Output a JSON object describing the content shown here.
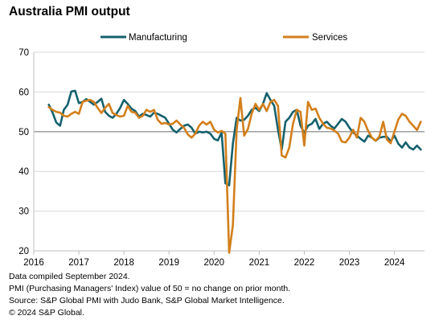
{
  "title": "Australia PMI output",
  "footnotes": [
    "Data compiled September 2024.",
    "PMI (Purchasing Managers' Index) value of 50 = no change on prior month.",
    "Source: S&P Global PMI with Judo Bank, S&P Global Market Intelligence.",
    "© 2024 S&P Global."
  ],
  "colors": {
    "manufacturing": "#15616d",
    "services": "#d37f1b",
    "gridline": "#d9d9d9",
    "reference_line": "#7f7f7f",
    "axis": "#bfbfbf"
  },
  "chart_data": {
    "type": "line",
    "title": "Australia PMI output",
    "legend_position": "top",
    "grid": true,
    "reference_line_y": 50,
    "xlim": [
      "2016-01",
      "2024-09"
    ],
    "ylim": [
      20,
      70
    ],
    "x_ticks": [
      "2016",
      "2017",
      "2018",
      "2019",
      "2020",
      "2021",
      "2022",
      "2023",
      "2024"
    ],
    "y_ticks": [
      20,
      30,
      40,
      50,
      60,
      70
    ],
    "x": [
      "2016-05",
      "2016-06",
      "2016-07",
      "2016-08",
      "2016-09",
      "2016-10",
      "2016-11",
      "2016-12",
      "2017-01",
      "2017-02",
      "2017-03",
      "2017-04",
      "2017-05",
      "2017-06",
      "2017-07",
      "2017-08",
      "2017-09",
      "2017-10",
      "2017-11",
      "2017-12",
      "2018-01",
      "2018-02",
      "2018-03",
      "2018-04",
      "2018-05",
      "2018-06",
      "2018-07",
      "2018-08",
      "2018-09",
      "2018-10",
      "2018-11",
      "2018-12",
      "2019-01",
      "2019-02",
      "2019-03",
      "2019-04",
      "2019-05",
      "2019-06",
      "2019-07",
      "2019-08",
      "2019-09",
      "2019-10",
      "2019-11",
      "2019-12",
      "2020-01",
      "2020-02",
      "2020-03",
      "2020-04",
      "2020-05",
      "2020-06",
      "2020-07",
      "2020-08",
      "2020-09",
      "2020-10",
      "2020-11",
      "2020-12",
      "2021-01",
      "2021-02",
      "2021-03",
      "2021-04",
      "2021-05",
      "2021-06",
      "2021-07",
      "2021-08",
      "2021-09",
      "2021-10",
      "2021-11",
      "2021-12",
      "2022-01",
      "2022-02",
      "2022-03",
      "2022-04",
      "2022-05",
      "2022-06",
      "2022-07",
      "2022-08",
      "2022-09",
      "2022-10",
      "2022-11",
      "2022-12",
      "2023-01",
      "2023-02",
      "2023-03",
      "2023-04",
      "2023-05",
      "2023-06",
      "2023-07",
      "2023-08",
      "2023-09",
      "2023-10",
      "2023-11",
      "2023-12",
      "2024-01",
      "2024-02",
      "2024-03",
      "2024-04",
      "2024-05",
      "2024-06",
      "2024-07",
      "2024-08"
    ],
    "series": [
      {
        "name": "Manufacturing",
        "color": "#15616d",
        "values": [
          56.8,
          54.8,
          52.3,
          51.5,
          55.5,
          56.8,
          60.1,
          60.3,
          57.2,
          57.5,
          58.2,
          57.5,
          56.8,
          57.5,
          58.3,
          55.0,
          54.0,
          53.5,
          54.5,
          56.0,
          58.0,
          57.0,
          55.8,
          55.2,
          53.8,
          54.5,
          54.2,
          53.8,
          54.8,
          54.5,
          54.0,
          53.5,
          52.0,
          50.5,
          49.8,
          50.7,
          51.5,
          51.8,
          51.0,
          49.5,
          50.0,
          49.8,
          50.0,
          49.5,
          48.2,
          47.8,
          49.8,
          37.0,
          36.5,
          47.0,
          53.5,
          52.8,
          53.0,
          54.0,
          55.5,
          56.0,
          55.2,
          57.0,
          59.7,
          58.0,
          56.5,
          50.5,
          45.5,
          52.5,
          53.5,
          55.0,
          55.5,
          51.5,
          49.7,
          51.5,
          52.0,
          53.2,
          50.7,
          52.0,
          52.5,
          51.5,
          50.8,
          52.0,
          53.2,
          52.5,
          51.0,
          49.8,
          49.0,
          48.2,
          47.5,
          49.0,
          48.5,
          47.7,
          48.5,
          48.7,
          48.7,
          47.6,
          49.0,
          47.0,
          46.0,
          47.3,
          46.0,
          45.5,
          46.5,
          45.5
        ]
      },
      {
        "name": "Services",
        "color": "#d37f1b",
        "values": [
          56.2,
          55.5,
          55.0,
          54.8,
          54.0,
          53.8,
          54.5,
          55.0,
          54.5,
          57.5,
          57.8,
          58.0,
          57.5,
          56.0,
          54.7,
          56.0,
          57.0,
          54.7,
          54.2,
          53.8,
          54.0,
          56.5,
          55.0,
          54.8,
          53.5,
          54.0,
          55.5,
          55.0,
          55.5,
          53.0,
          52.0,
          52.2,
          51.8,
          52.0,
          52.8,
          51.8,
          51.0,
          49.3,
          48.5,
          49.5,
          51.5,
          52.5,
          51.8,
          52.5,
          50.5,
          49.8,
          50.2,
          49.5,
          19.5,
          26.5,
          50.5,
          58.5,
          49.0,
          50.7,
          54.5,
          57.0,
          55.5,
          57.0,
          55.2,
          57.5,
          58.0,
          56.5,
          44.0,
          43.5,
          46.0,
          52.0,
          55.5,
          55.0,
          46.5,
          57.5,
          55.5,
          55.8,
          53.5,
          52.0,
          51.0,
          50.8,
          50.3,
          49.5,
          47.5,
          47.3,
          48.5,
          50.5,
          48.5,
          53.5,
          52.5,
          50.2,
          48.5,
          47.7,
          48.8,
          52.5,
          48.0,
          47.1,
          50.0,
          53.0,
          54.5,
          54.0,
          52.5,
          51.5,
          50.4,
          52.5
        ]
      }
    ]
  }
}
